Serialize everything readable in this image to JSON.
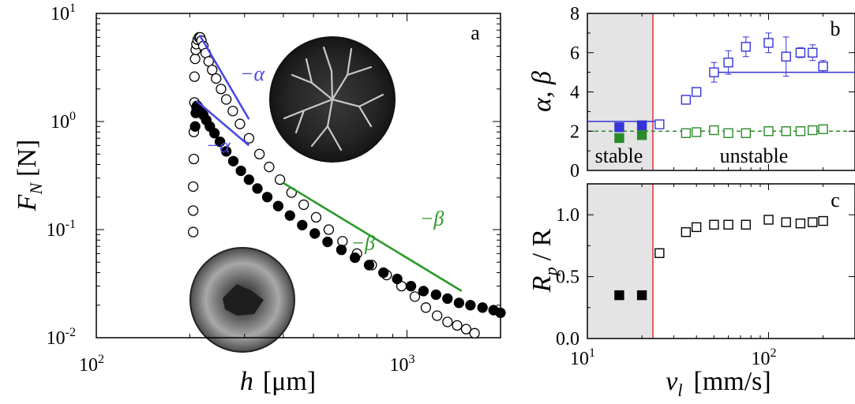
{
  "chart_data": [
    {
      "panel": "a",
      "type": "scatter",
      "x_scale": "log",
      "y_scale": "log",
      "xlim": [
        100,
        2000
      ],
      "ylim": [
        0.01,
        10
      ],
      "xlabel_var": "h",
      "xlabel_unit": "[μm]",
      "ylabel_var": "F",
      "ylabel_sub": "N",
      "ylabel_unit": "[N]",
      "x_ticks": [
        {
          "base": "10",
          "exp": "2",
          "value": 100
        },
        {
          "base": "10",
          "exp": "3",
          "value": 1000
        }
      ],
      "y_ticks": [
        {
          "base": "10",
          "exp": "1",
          "value": 10
        },
        {
          "base": "10",
          "exp": "0",
          "value": 1
        },
        {
          "base": "10",
          "exp": "-1",
          "value": 0.1
        },
        {
          "base": "10",
          "exp": "-2",
          "value": 0.01
        }
      ],
      "series": [
        {
          "marker": "open-circle",
          "color": "#000000",
          "x": [
            205,
            205,
            205,
            206,
            206,
            207,
            207,
            208,
            209,
            210,
            212,
            214,
            216,
            218,
            221,
            225,
            230,
            236,
            243,
            252,
            262,
            275,
            290,
            310,
            335,
            360,
            390,
            425,
            465,
            510,
            560,
            620,
            690,
            770,
            860,
            960,
            1060,
            1150,
            1250,
            1350,
            1450,
            1550,
            1650
          ],
          "y": [
            0.095,
            0.15,
            0.25,
            0.45,
            0.8,
            1.5,
            2.6,
            3.8,
            4.6,
            5.2,
            5.7,
            6.0,
            6.0,
            5.6,
            5.0,
            4.3,
            3.6,
            3.0,
            2.5,
            2.0,
            1.6,
            1.25,
            0.95,
            0.7,
            0.5,
            0.38,
            0.29,
            0.22,
            0.17,
            0.13,
            0.1,
            0.078,
            0.06,
            0.047,
            0.038,
            0.03,
            0.024,
            0.019,
            0.016,
            0.014,
            0.013,
            0.012,
            0.011
          ]
        },
        {
          "marker": "filled-circle",
          "color": "#000000",
          "x": [
            208,
            209,
            210,
            211,
            212,
            214,
            217,
            221,
            226,
            232,
            240,
            250,
            262,
            276,
            292,
            310,
            330,
            355,
            385,
            420,
            460,
            505,
            555,
            615,
            680,
            755,
            840,
            930,
            1030,
            1130,
            1240,
            1350,
            1470,
            1600,
            1750,
            1900,
            2000
          ],
          "y": [
            0.9,
            1.2,
            1.35,
            1.4,
            1.38,
            1.33,
            1.25,
            1.15,
            1.03,
            0.9,
            0.78,
            0.65,
            0.53,
            0.43,
            0.35,
            0.29,
            0.24,
            0.2,
            0.165,
            0.135,
            0.11,
            0.092,
            0.077,
            0.065,
            0.055,
            0.047,
            0.04,
            0.035,
            0.03,
            0.027,
            0.025,
            0.023,
            0.021,
            0.02,
            0.019,
            0.018,
            0.017
          ]
        }
      ],
      "fit_lines": [
        {
          "color": "#4a4ae8",
          "x": [
            215,
            310
          ],
          "y": [
            6.3,
            1.05
          ]
        },
        {
          "color": "#4a4ae8",
          "x": [
            210,
            310
          ],
          "y": [
            1.55,
            0.6
          ]
        },
        {
          "color": "#2a9a2a",
          "x": [
            400,
            1500
          ],
          "y": [
            0.27,
            0.027
          ]
        }
      ],
      "annotations": [
        {
          "text": "−α",
          "color": "#4a4ae8",
          "x": 290,
          "y": 2.4
        },
        {
          "text": "−α",
          "color": "#4a4ae8",
          "x": 225,
          "y": 0.52
        },
        {
          "text": "−β",
          "color": "#2a9a2a",
          "x": 1100,
          "y": 0.11
        },
        {
          "text": "−β",
          "color": "#2a9a2a",
          "x": 660,
          "y": 0.065
        }
      ],
      "panel_label": "a"
    },
    {
      "panel": "b",
      "type": "scatter",
      "x_scale": "log",
      "xlim": [
        10,
        300
      ],
      "ylim": [
        0,
        8
      ],
      "ylabel": "α, β",
      "y_ticks": [
        "0",
        "2",
        "4",
        "6",
        "8"
      ],
      "alpha_filled": {
        "x": [
          15,
          20
        ],
        "y": [
          2.2,
          2.3
        ]
      },
      "alpha_open": {
        "x": [
          25,
          35,
          40,
          50,
          60,
          75,
          100,
          125,
          150,
          175,
          200
        ],
        "y": [
          2.35,
          3.6,
          4.0,
          5.0,
          5.5,
          6.3,
          6.5,
          5.8,
          6.0,
          6.0,
          5.3
        ],
        "err": [
          0,
          0.15,
          0.15,
          0.5,
          0.6,
          0.5,
          0.5,
          1.0,
          0.25,
          0.4,
          0.3
        ]
      },
      "beta_filled": {
        "x": [
          15,
          20
        ],
        "y": [
          1.65,
          1.8
        ]
      },
      "beta_open": {
        "x": [
          35,
          40,
          50,
          60,
          75,
          100,
          125,
          150,
          175,
          200
        ],
        "y": [
          1.9,
          1.95,
          2.05,
          1.9,
          1.9,
          2.0,
          2.0,
          2.0,
          2.05,
          2.1
        ]
      },
      "alpha_levels": [
        {
          "x": [
            10,
            25
          ],
          "y": 2.5
        },
        {
          "x": [
            50,
            300
          ],
          "y": 5.0
        }
      ],
      "beta_level": {
        "x": [
          10,
          300
        ],
        "y": 2.0
      },
      "stable_text": "stable",
      "unstable_text": "unstable",
      "panel_label": "b"
    },
    {
      "panel": "c",
      "type": "scatter",
      "x_scale": "log",
      "xlim": [
        10,
        300
      ],
      "ylim": [
        0,
        1.25
      ],
      "ylabel_var": "R",
      "ylabel_sub": "p",
      "ylabel_rest": "/ R",
      "xlabel_var": "v",
      "xlabel_sub": "l",
      "xlabel_unit": "[mm/s]",
      "y_ticks": [
        "0.0",
        "0.5",
        "1.0"
      ],
      "x_ticks": [
        {
          "base": "10",
          "exp": "1",
          "value": 10
        },
        {
          "base": "10",
          "exp": "2",
          "value": 100
        }
      ],
      "filled": {
        "x": [
          15,
          20
        ],
        "y": [
          0.35,
          0.35
        ]
      },
      "open": {
        "x": [
          25,
          35,
          40,
          50,
          60,
          75,
          100,
          125,
          150,
          175,
          200
        ],
        "y": [
          0.69,
          0.86,
          0.9,
          0.92,
          0.92,
          0.92,
          0.96,
          0.94,
          0.93,
          0.94,
          0.95
        ]
      },
      "panel_label": "c"
    }
  ],
  "colors": {
    "alpha": "#3434d8",
    "beta": "#2a8a2a",
    "threshold": "#e03030",
    "shade": "#e4e4e4"
  },
  "threshold_v": 23
}
